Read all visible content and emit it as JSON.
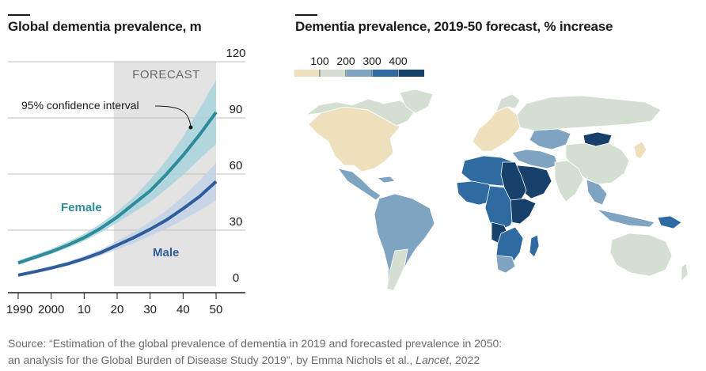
{
  "left": {
    "title": "Global dementia prevalence, m",
    "forecast_label": "FORECAST",
    "ci_label": "95% confidence interval",
    "female_label": "Female",
    "male_label": "Male"
  },
  "right": {
    "title": "Dementia prevalence, 2019-50 forecast, % increase"
  },
  "source": {
    "line1": "Source: “Estimation of the global prevalence of dementia in 2019 and forecasted prevalence in 2050:",
    "line2_pre": "an analysis for the Global Burden of Disease Study 2019”, by Emma Nichols et al., ",
    "journal": "Lancet",
    "line2_post": ", 2022"
  },
  "colors": {
    "female_line": "#2e8b9a",
    "female_band": "#a9d3dc",
    "male_line": "#2f5d9c",
    "male_band": "#c3d2e6",
    "forecast_shade": "#e3e3e3",
    "grid": "#bdbdbd",
    "scale": [
      "#efe0bd",
      "#d3dfd1",
      "#7fa4c2",
      "#2f6aa0",
      "#17416b"
    ]
  },
  "chart_data": [
    {
      "type": "line",
      "title": "Global dementia prevalence, m",
      "x_tick_labels": [
        "1990",
        "2000",
        "10",
        "20",
        "30",
        "40",
        "50"
      ],
      "x_ticks": [
        1990,
        2000,
        2010,
        2020,
        2030,
        2040,
        2050
      ],
      "xlim": [
        1990,
        2050
      ],
      "y_ticks": [
        0,
        30,
        60,
        90,
        120
      ],
      "ylim": [
        0,
        120
      ],
      "forecast_start": 2019,
      "x": [
        1990,
        1995,
        2000,
        2005,
        2010,
        2015,
        2020,
        2025,
        2030,
        2035,
        2040,
        2045,
        2050
      ],
      "series": [
        {
          "name": "Female",
          "values": [
            12.5,
            15.5,
            18.5,
            22,
            26,
            31,
            37,
            44,
            51,
            60,
            70,
            81,
            93
          ],
          "ci_low": [
            11.5,
            14.3,
            17.2,
            20.5,
            24.3,
            28.9,
            34,
            39.5,
            45,
            52,
            59.5,
            68,
            76
          ],
          "ci_high": [
            13.8,
            16.8,
            20,
            23.8,
            28,
            33.5,
            40,
            47.5,
            57,
            67.5,
            80,
            95,
            110
          ]
        },
        {
          "name": "Male",
          "values": [
            6,
            7.8,
            9.8,
            12,
            14.8,
            18,
            22,
            26,
            30.5,
            35.5,
            41.5,
            48,
            56
          ],
          "ci_low": [
            5.3,
            7,
            8.9,
            11,
            13.5,
            16.4,
            19.8,
            23,
            27,
            31,
            35.5,
            40.5,
            46
          ],
          "ci_high": [
            6.8,
            8.7,
            10.8,
            13.2,
            16.2,
            19.6,
            24.2,
            29,
            34.5,
            40.5,
            48,
            56.5,
            66
          ]
        }
      ]
    },
    {
      "type": "heatmap",
      "title": "Dementia prevalence, 2019-50 forecast, % increase",
      "legend_labels": [
        "100",
        "200",
        "300",
        "400"
      ],
      "legend_bins": 5
    }
  ]
}
